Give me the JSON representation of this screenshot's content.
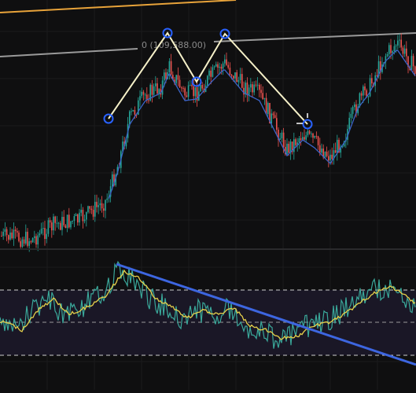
{
  "chart_data": [
    {
      "type": "candlestick",
      "panel": "price",
      "annotations": [
        {
          "kind": "horizontal-ray-label",
          "text": "0 (109,588.00)"
        }
      ],
      "series": [
        {
          "name": "",
          "role": "moving-average",
          "color": "#3c64c8"
        }
      ],
      "colors": {
        "up": "#26a69a",
        "down": "#ef5350",
        "moving_average": "#3c64c8",
        "pattern": "#f5f0c8",
        "handles": "#2962ff",
        "orange_trendline": "#e8a33a",
        "gray_trendline": "#9a9a9a"
      },
      "pattern": {
        "kind": "head-and-shoulders",
        "point_count": 6
      },
      "grid": true,
      "legend": "none"
    },
    {
      "type": "line",
      "panel": "oscillator",
      "series": [
        {
          "name": "",
          "color": "#3aa89a"
        },
        {
          "name": "",
          "color": "#e6d04a"
        }
      ],
      "bands": {
        "upper": true,
        "middle": true,
        "lower": true,
        "style": "dashed"
      },
      "annotations": [
        {
          "kind": "trendline",
          "color": "#3d66e0"
        }
      ],
      "grid": true,
      "legend": "none"
    }
  ]
}
